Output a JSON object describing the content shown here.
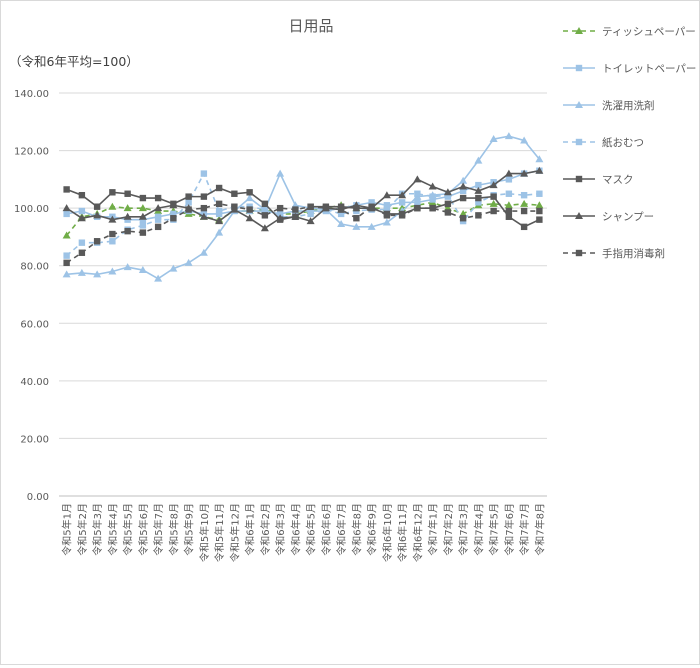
{
  "chart_data": {
    "type": "line",
    "title": "日用品",
    "subtitle": "（令和6年平均=100）",
    "xlabel": "",
    "ylabel": "",
    "ylim": [
      0,
      140
    ],
    "yticks": [
      "0.00",
      "20.00",
      "40.00",
      "60.00",
      "80.00",
      "100.00",
      "120.00",
      "140.00"
    ],
    "ytick_values": [
      0,
      20,
      40,
      60,
      80,
      100,
      120,
      140
    ],
    "grid": "horizontal",
    "legend_position": "right",
    "categories": [
      "令和5年1月",
      "令和5年2月",
      "令和5年3月",
      "令和5年4月",
      "令和5年5月",
      "令和5年6月",
      "令和5年7月",
      "令和5年8月",
      "令和5年9月",
      "令和5年10月",
      "令和5年11月",
      "令和5年12月",
      "令和6年1月",
      "令和6年2月",
      "令和6年3月",
      "令和6年4月",
      "令和6年5月",
      "令和6年6月",
      "令和6年7月",
      "令和6年8月",
      "令和6年9月",
      "令和6年10月",
      "令和6年11月",
      "令和6年12月",
      "令和7年1月",
      "令和7年2月",
      "令和7年3月",
      "令和7年4月",
      "令和7年5月",
      "令和7年6月",
      "令和7年7月",
      "令和7年8月"
    ],
    "series": [
      {
        "name": "ティッシュペーパー",
        "color": "#70ad47",
        "dash": "5,4",
        "marker": "triangle",
        "values": [
          90.5,
          97,
          98,
          100.5,
          100,
          100,
          99,
          99,
          98,
          97,
          96,
          99,
          99,
          99.5,
          98,
          98,
          99,
          100,
          101,
          100,
          100,
          100,
          100,
          101,
          102,
          100,
          98,
          101,
          101.5,
          101,
          101.5,
          101
        ]
      },
      {
        "name": "トイレットペーパー",
        "color": "#9dc3e6",
        "dash": "",
        "marker": "square",
        "values": [
          98,
          99,
          97,
          97,
          96,
          96,
          97,
          98,
          99,
          98,
          98,
          99,
          99,
          99,
          98,
          99,
          99,
          99,
          100,
          101,
          102,
          101,
          102,
          102,
          103,
          104,
          106,
          108,
          109,
          110,
          112,
          113
        ]
      },
      {
        "name": "洗濯用洗剤",
        "color": "#9dc3e6",
        "dash": "",
        "marker": "triangle",
        "values": [
          77,
          77.5,
          77,
          78,
          79.5,
          78.5,
          75.5,
          79,
          81,
          84.5,
          91.5,
          99,
          103.5,
          99.5,
          112,
          101,
          100,
          99.5,
          94.5,
          93.5,
          93.5,
          95,
          99,
          104,
          104.5,
          105,
          109.5,
          116.5,
          124,
          125,
          123.5,
          117
        ]
      },
      {
        "name": "紙おむつ",
        "color": "#9dc3e6",
        "dash": "5,4",
        "marker": "square",
        "values": [
          83.5,
          88,
          88,
          88.5,
          92.5,
          94,
          96,
          96,
          102,
          112,
          99,
          100.5,
          100.5,
          99.5,
          97,
          97,
          98,
          99.5,
          98,
          99,
          99.5,
          99.5,
          105,
          105,
          104,
          104.5,
          95.5,
          102,
          104.5,
          105,
          104.5,
          105
        ]
      },
      {
        "name": "マスク",
        "color": "#595959",
        "dash": "",
        "marker": "square",
        "values": [
          106.5,
          104.5,
          100.5,
          105.5,
          105,
          103.5,
          103.5,
          101.5,
          104,
          104,
          107,
          105,
          105.5,
          101.5,
          96,
          97,
          100.5,
          100.5,
          100.5,
          100,
          100,
          98,
          98,
          100,
          100,
          101.5,
          103.5,
          103.5,
          104,
          97,
          93.5,
          96
        ]
      },
      {
        "name": "シャンプー",
        "color": "#595959",
        "dash": "",
        "marker": "triangle",
        "values": [
          100,
          96.5,
          97.5,
          96,
          97,
          97,
          100,
          101,
          100,
          97,
          95.5,
          99.5,
          96.5,
          93,
          96.5,
          97,
          95.5,
          100,
          99.5,
          101,
          100,
          104.5,
          104.5,
          110,
          107.5,
          105.5,
          107.5,
          106,
          108,
          112,
          112,
          113
        ]
      },
      {
        "name": "手指用消毒剤",
        "color": "#595959",
        "dash": "5,4",
        "marker": "square",
        "values": [
          81,
          84.5,
          88.5,
          91,
          92,
          91.5,
          93.5,
          96.5,
          99.5,
          100,
          101.5,
          100.5,
          99.5,
          97.5,
          100,
          99.5,
          100.5,
          100,
          99.5,
          96.5,
          100.5,
          97.5,
          97.5,
          100,
          100,
          98.5,
          96.5,
          97.5,
          99,
          99,
          99,
          99
        ]
      }
    ]
  }
}
